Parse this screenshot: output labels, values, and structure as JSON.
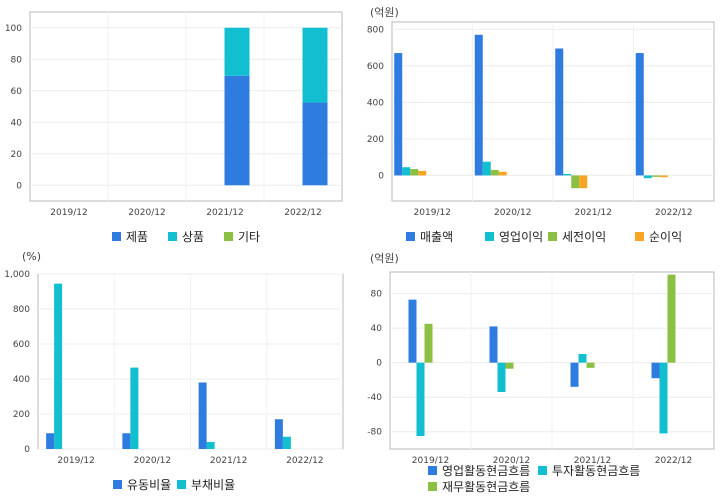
{
  "chart_data": [
    {
      "type": "bar",
      "stacked": true,
      "unit_label": "",
      "categories": [
        "2019/12",
        "2020/12",
        "2021/12",
        "2022/12"
      ],
      "yticks": [
        0,
        20,
        40,
        60,
        80,
        100
      ],
      "ylim": [
        -10,
        110
      ],
      "series": [
        {
          "name": "제품",
          "color": "#2f7ce0",
          "values": [
            0,
            0,
            69.5,
            52.5
          ]
        },
        {
          "name": "상품",
          "color": "#11bfd0",
          "values": [
            0,
            0,
            30.5,
            47.5
          ]
        },
        {
          "name": "기타",
          "color": "#8cc043",
          "values": [
            0,
            0,
            0,
            0
          ]
        }
      ]
    },
    {
      "type": "bar",
      "unit_label": "(억원)",
      "categories": [
        "2019/12",
        "2020/12",
        "2021/12",
        "2022/12"
      ],
      "yticks": [
        0,
        200,
        400,
        600,
        800
      ],
      "ylim": [
        -140,
        840
      ],
      "series": [
        {
          "name": "매출액",
          "color": "#2f7ce0",
          "values": [
            670,
            770,
            695,
            670
          ]
        },
        {
          "name": "영업이익",
          "color": "#11bfd0",
          "values": [
            45,
            75,
            8,
            -15
          ]
        },
        {
          "name": "세전이익",
          "color": "#8cc043",
          "values": [
            35,
            30,
            -70,
            -8
          ]
        },
        {
          "name": "순이익",
          "color": "#f5a623",
          "values": [
            25,
            20,
            -70,
            -10
          ]
        }
      ]
    },
    {
      "type": "bar",
      "unit_label": "(%)",
      "categories": [
        "2019/12",
        "2020/12",
        "2021/12",
        "2022/12"
      ],
      "yticks": [
        0,
        200,
        400,
        600,
        800,
        "1,000"
      ],
      "ytick_values": [
        0,
        200,
        400,
        600,
        800,
        1000
      ],
      "ylim": [
        0,
        1000
      ],
      "series": [
        {
          "name": "유동비율",
          "color": "#2f7ce0",
          "values": [
            90,
            90,
            380,
            170
          ]
        },
        {
          "name": "부채비율",
          "color": "#11bfd0",
          "values": [
            945,
            465,
            40,
            70
          ]
        }
      ]
    },
    {
      "type": "bar",
      "unit_label": "(억원)",
      "categories": [
        "2019/12",
        "2020/12",
        "2021/12",
        "2022/12"
      ],
      "yticks": [
        80,
        40,
        0,
        -40,
        -80
      ],
      "ytick_values": [
        80,
        40,
        0,
        -40,
        -80
      ],
      "ylim": [
        -100,
        105
      ],
      "series": [
        {
          "name": "영업활동현금흐름",
          "color": "#2f7ce0",
          "values": [
            73,
            42,
            -28,
            -18
          ]
        },
        {
          "name": "투자활동현금흐름",
          "color": "#11bfd0",
          "values": [
            -85,
            -34,
            10,
            -82
          ]
        },
        {
          "name": "재무활동현금흐름",
          "color": "#8cc043",
          "values": [
            45,
            -7,
            -6,
            102
          ]
        }
      ]
    }
  ]
}
